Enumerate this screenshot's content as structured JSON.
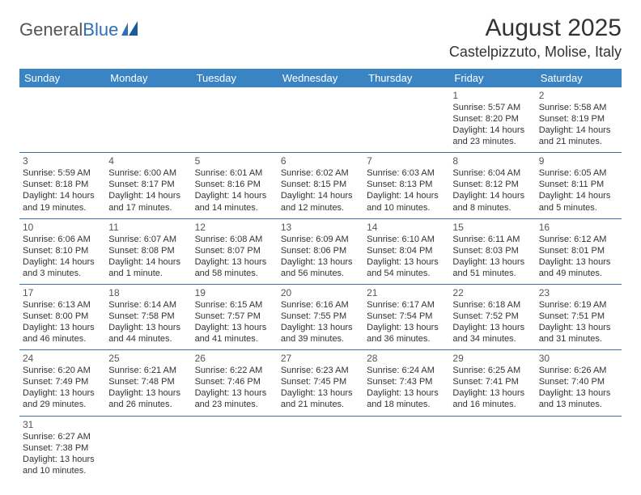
{
  "logo": {
    "textGray": "General",
    "textBlue": "Blue"
  },
  "title": "August 2025",
  "location": "Castelpizzuto, Molise, Italy",
  "colors": {
    "headerBg": "#3b84c4",
    "headerText": "#ffffff",
    "rowBorder": "#3b6fa3",
    "logoBlue": "#2f6fb3"
  },
  "dayHeaders": [
    "Sunday",
    "Monday",
    "Tuesday",
    "Wednesday",
    "Thursday",
    "Friday",
    "Saturday"
  ],
  "weeks": [
    [
      null,
      null,
      null,
      null,
      null,
      {
        "n": "1",
        "sunrise": "Sunrise: 5:57 AM",
        "sunset": "Sunset: 8:20 PM",
        "daylight": "Daylight: 14 hours and 23 minutes."
      },
      {
        "n": "2",
        "sunrise": "Sunrise: 5:58 AM",
        "sunset": "Sunset: 8:19 PM",
        "daylight": "Daylight: 14 hours and 21 minutes."
      }
    ],
    [
      {
        "n": "3",
        "sunrise": "Sunrise: 5:59 AM",
        "sunset": "Sunset: 8:18 PM",
        "daylight": "Daylight: 14 hours and 19 minutes."
      },
      {
        "n": "4",
        "sunrise": "Sunrise: 6:00 AM",
        "sunset": "Sunset: 8:17 PM",
        "daylight": "Daylight: 14 hours and 17 minutes."
      },
      {
        "n": "5",
        "sunrise": "Sunrise: 6:01 AM",
        "sunset": "Sunset: 8:16 PM",
        "daylight": "Daylight: 14 hours and 14 minutes."
      },
      {
        "n": "6",
        "sunrise": "Sunrise: 6:02 AM",
        "sunset": "Sunset: 8:15 PM",
        "daylight": "Daylight: 14 hours and 12 minutes."
      },
      {
        "n": "7",
        "sunrise": "Sunrise: 6:03 AM",
        "sunset": "Sunset: 8:13 PM",
        "daylight": "Daylight: 14 hours and 10 minutes."
      },
      {
        "n": "8",
        "sunrise": "Sunrise: 6:04 AM",
        "sunset": "Sunset: 8:12 PM",
        "daylight": "Daylight: 14 hours and 8 minutes."
      },
      {
        "n": "9",
        "sunrise": "Sunrise: 6:05 AM",
        "sunset": "Sunset: 8:11 PM",
        "daylight": "Daylight: 14 hours and 5 minutes."
      }
    ],
    [
      {
        "n": "10",
        "sunrise": "Sunrise: 6:06 AM",
        "sunset": "Sunset: 8:10 PM",
        "daylight": "Daylight: 14 hours and 3 minutes."
      },
      {
        "n": "11",
        "sunrise": "Sunrise: 6:07 AM",
        "sunset": "Sunset: 8:08 PM",
        "daylight": "Daylight: 14 hours and 1 minute."
      },
      {
        "n": "12",
        "sunrise": "Sunrise: 6:08 AM",
        "sunset": "Sunset: 8:07 PM",
        "daylight": "Daylight: 13 hours and 58 minutes."
      },
      {
        "n": "13",
        "sunrise": "Sunrise: 6:09 AM",
        "sunset": "Sunset: 8:06 PM",
        "daylight": "Daylight: 13 hours and 56 minutes."
      },
      {
        "n": "14",
        "sunrise": "Sunrise: 6:10 AM",
        "sunset": "Sunset: 8:04 PM",
        "daylight": "Daylight: 13 hours and 54 minutes."
      },
      {
        "n": "15",
        "sunrise": "Sunrise: 6:11 AM",
        "sunset": "Sunset: 8:03 PM",
        "daylight": "Daylight: 13 hours and 51 minutes."
      },
      {
        "n": "16",
        "sunrise": "Sunrise: 6:12 AM",
        "sunset": "Sunset: 8:01 PM",
        "daylight": "Daylight: 13 hours and 49 minutes."
      }
    ],
    [
      {
        "n": "17",
        "sunrise": "Sunrise: 6:13 AM",
        "sunset": "Sunset: 8:00 PM",
        "daylight": "Daylight: 13 hours and 46 minutes."
      },
      {
        "n": "18",
        "sunrise": "Sunrise: 6:14 AM",
        "sunset": "Sunset: 7:58 PM",
        "daylight": "Daylight: 13 hours and 44 minutes."
      },
      {
        "n": "19",
        "sunrise": "Sunrise: 6:15 AM",
        "sunset": "Sunset: 7:57 PM",
        "daylight": "Daylight: 13 hours and 41 minutes."
      },
      {
        "n": "20",
        "sunrise": "Sunrise: 6:16 AM",
        "sunset": "Sunset: 7:55 PM",
        "daylight": "Daylight: 13 hours and 39 minutes."
      },
      {
        "n": "21",
        "sunrise": "Sunrise: 6:17 AM",
        "sunset": "Sunset: 7:54 PM",
        "daylight": "Daylight: 13 hours and 36 minutes."
      },
      {
        "n": "22",
        "sunrise": "Sunrise: 6:18 AM",
        "sunset": "Sunset: 7:52 PM",
        "daylight": "Daylight: 13 hours and 34 minutes."
      },
      {
        "n": "23",
        "sunrise": "Sunrise: 6:19 AM",
        "sunset": "Sunset: 7:51 PM",
        "daylight": "Daylight: 13 hours and 31 minutes."
      }
    ],
    [
      {
        "n": "24",
        "sunrise": "Sunrise: 6:20 AM",
        "sunset": "Sunset: 7:49 PM",
        "daylight": "Daylight: 13 hours and 29 minutes."
      },
      {
        "n": "25",
        "sunrise": "Sunrise: 6:21 AM",
        "sunset": "Sunset: 7:48 PM",
        "daylight": "Daylight: 13 hours and 26 minutes."
      },
      {
        "n": "26",
        "sunrise": "Sunrise: 6:22 AM",
        "sunset": "Sunset: 7:46 PM",
        "daylight": "Daylight: 13 hours and 23 minutes."
      },
      {
        "n": "27",
        "sunrise": "Sunrise: 6:23 AM",
        "sunset": "Sunset: 7:45 PM",
        "daylight": "Daylight: 13 hours and 21 minutes."
      },
      {
        "n": "28",
        "sunrise": "Sunrise: 6:24 AM",
        "sunset": "Sunset: 7:43 PM",
        "daylight": "Daylight: 13 hours and 18 minutes."
      },
      {
        "n": "29",
        "sunrise": "Sunrise: 6:25 AM",
        "sunset": "Sunset: 7:41 PM",
        "daylight": "Daylight: 13 hours and 16 minutes."
      },
      {
        "n": "30",
        "sunrise": "Sunrise: 6:26 AM",
        "sunset": "Sunset: 7:40 PM",
        "daylight": "Daylight: 13 hours and 13 minutes."
      }
    ],
    [
      {
        "n": "31",
        "sunrise": "Sunrise: 6:27 AM",
        "sunset": "Sunset: 7:38 PM",
        "daylight": "Daylight: 13 hours and 10 minutes."
      },
      null,
      null,
      null,
      null,
      null,
      null
    ]
  ]
}
